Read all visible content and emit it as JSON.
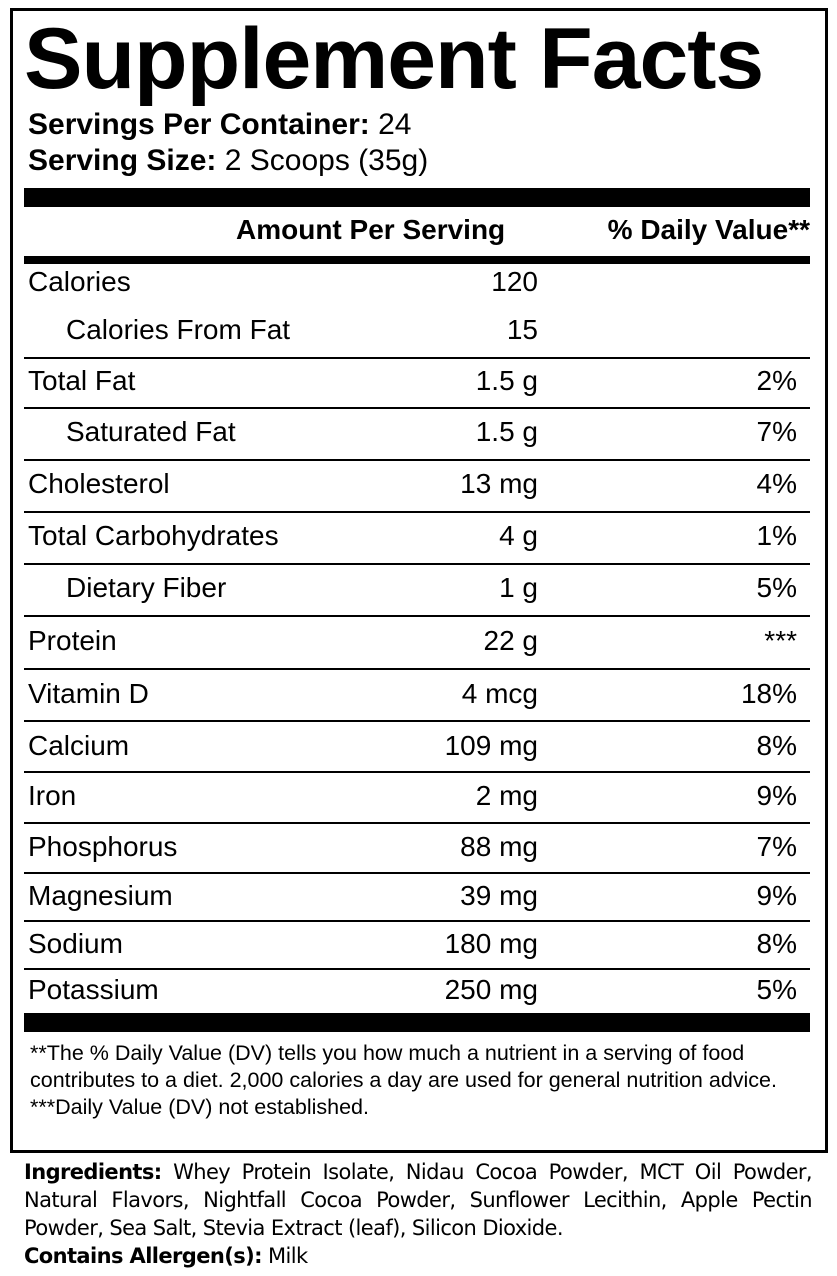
{
  "title": "Supplement Facts",
  "servings_per_container": {
    "label": "Servings Per Container:",
    "value": "24"
  },
  "serving_size": {
    "label": "Serving Size:",
    "value": "2 Scoops (35g)"
  },
  "headers": {
    "amount": "Amount Per Serving",
    "dv": "% Daily Value**"
  },
  "rows": [
    {
      "name": "Calories",
      "amount": "120",
      "dv": "",
      "indent": false
    },
    {
      "name": "Calories From Fat",
      "amount": "15",
      "dv": "",
      "indent": true
    },
    {
      "name": "Total Fat",
      "amount": "1.5 g",
      "dv": "2%",
      "indent": false
    },
    {
      "name": "Saturated Fat",
      "amount": "1.5 g",
      "dv": "7%",
      "indent": true
    },
    {
      "name": "Cholesterol",
      "amount": "13 mg",
      "dv": "4%",
      "indent": false
    },
    {
      "name": "Total Carbohydrates",
      "amount": "4 g",
      "dv": "1%",
      "indent": false
    },
    {
      "name": "Dietary Fiber",
      "amount": "1 g",
      "dv": "5%",
      "indent": true
    },
    {
      "name": "Protein",
      "amount": "22 g",
      "dv": "***",
      "indent": false
    },
    {
      "name": "Vitamin D",
      "amount": "4 mcg",
      "dv": "18%",
      "indent": false
    },
    {
      "name": "Calcium",
      "amount": "109 mg",
      "dv": "8%",
      "indent": false
    },
    {
      "name": "Iron",
      "amount": "2 mg",
      "dv": "9%",
      "indent": false
    },
    {
      "name": "Phosphorus",
      "amount": "88 mg",
      "dv": "7%",
      "indent": false
    },
    {
      "name": "Magnesium",
      "amount": "39 mg",
      "dv": "9%",
      "indent": false
    },
    {
      "name": "Sodium",
      "amount": "180 mg",
      "dv": "8%",
      "indent": false
    },
    {
      "name": "Potassium",
      "amount": "250 mg",
      "dv": "5%",
      "indent": false
    }
  ],
  "footnotes": {
    "dv_note": "**The % Daily Value (DV) tells you how much a nutrient in a serving of food contributes to a diet. 2,000 calories a day are used for general nutrition advice.",
    "not_established": "***Daily Value (DV) not established."
  },
  "ingredients": {
    "label": "Ingredients:",
    "text": "Whey Protein Isolate, Nidau Cocoa Powder, MCT Oil Powder, Natural Flavors, Nightfall Cocoa Powder, Sunflower Lecithin, Apple Pectin Powder, Sea Salt, Stevia Extract (leaf), Silicon Dioxide."
  },
  "allergens": {
    "label": "Contains Allergen(s):",
    "text": "Milk"
  }
}
